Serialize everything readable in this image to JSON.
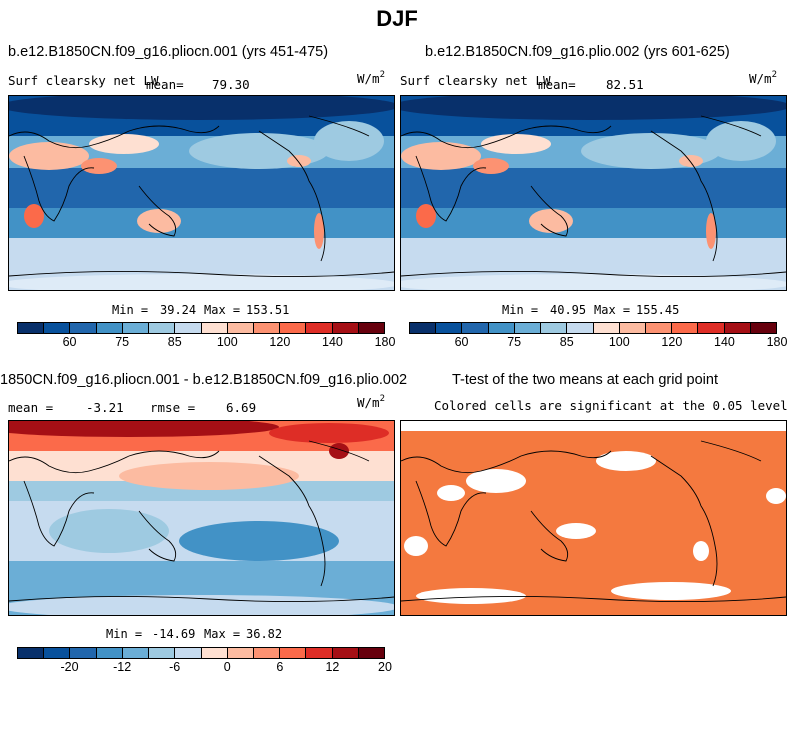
{
  "main_title": "DJF",
  "colors": {
    "abs_scale": [
      "#08306b",
      "#08519c",
      "#2166ac",
      "#4292c6",
      "#6baed6",
      "#9ecae1",
      "#c6dbef",
      "#fee0d2",
      "#fcbba1",
      "#fc9272",
      "#fb6a4a",
      "#de2d26",
      "#a50f15",
      "#67000d"
    ],
    "diff_scale": [
      "#08306b",
      "#08519c",
      "#2166ac",
      "#4292c6",
      "#6baed6",
      "#9ecae1",
      "#c6dbef",
      "#fee0d2",
      "#fcbba1",
      "#fc9272",
      "#fb6a4a",
      "#de2d26",
      "#a50f15",
      "#67000d"
    ],
    "significant": "#f4793f"
  },
  "chart_data": [
    {
      "type": "heatmap",
      "title": "b.e12.B1850CN.f09_g16.pliocn.001 (yrs 451-475)",
      "variable": "Surf clearsky net LW",
      "stat_label": "mean=",
      "stat_value": "79.30",
      "units": "W/m",
      "units_sup": "2",
      "min_label": "Min =",
      "min": "39.24",
      "max_label": "Max =",
      "max": "153.51",
      "colorbar_ticks": [
        "60",
        "75",
        "85",
        "100",
        "120",
        "140",
        "180"
      ]
    },
    {
      "type": "heatmap",
      "title": "b.e12.B1850CN.f09_g16.plio.002 (yrs 601-625)",
      "variable": "Surf clearsky net LW",
      "stat_label": "mean=",
      "stat_value": "82.51",
      "units": "W/m",
      "units_sup": "2",
      "min_label": "Min =",
      "min": "40.95",
      "max_label": "Max =",
      "max": "155.45",
      "colorbar_ticks": [
        "60",
        "75",
        "85",
        "100",
        "120",
        "140",
        "180"
      ]
    },
    {
      "type": "heatmap",
      "title": "1850CN.f09_g16.pliocn.001 - b.e12.B1850CN.f09_g16.plio.002",
      "mean_label": "mean =",
      "mean_value": "-3.21",
      "rmse_label": "rmse =",
      "rmse_value": "6.69",
      "units": "W/m",
      "units_sup": "2",
      "min_label": "Min =",
      "min": "-14.69",
      "max_label": "Max =",
      "max": "36.82",
      "colorbar_ticks": [
        "-20",
        "-12",
        "-6",
        "0",
        "6",
        "12",
        "20"
      ]
    },
    {
      "type": "heatmap",
      "title": "T-test of the two means at each grid point",
      "subtitle": "Colored cells are significant at the 0.05 level"
    }
  ]
}
